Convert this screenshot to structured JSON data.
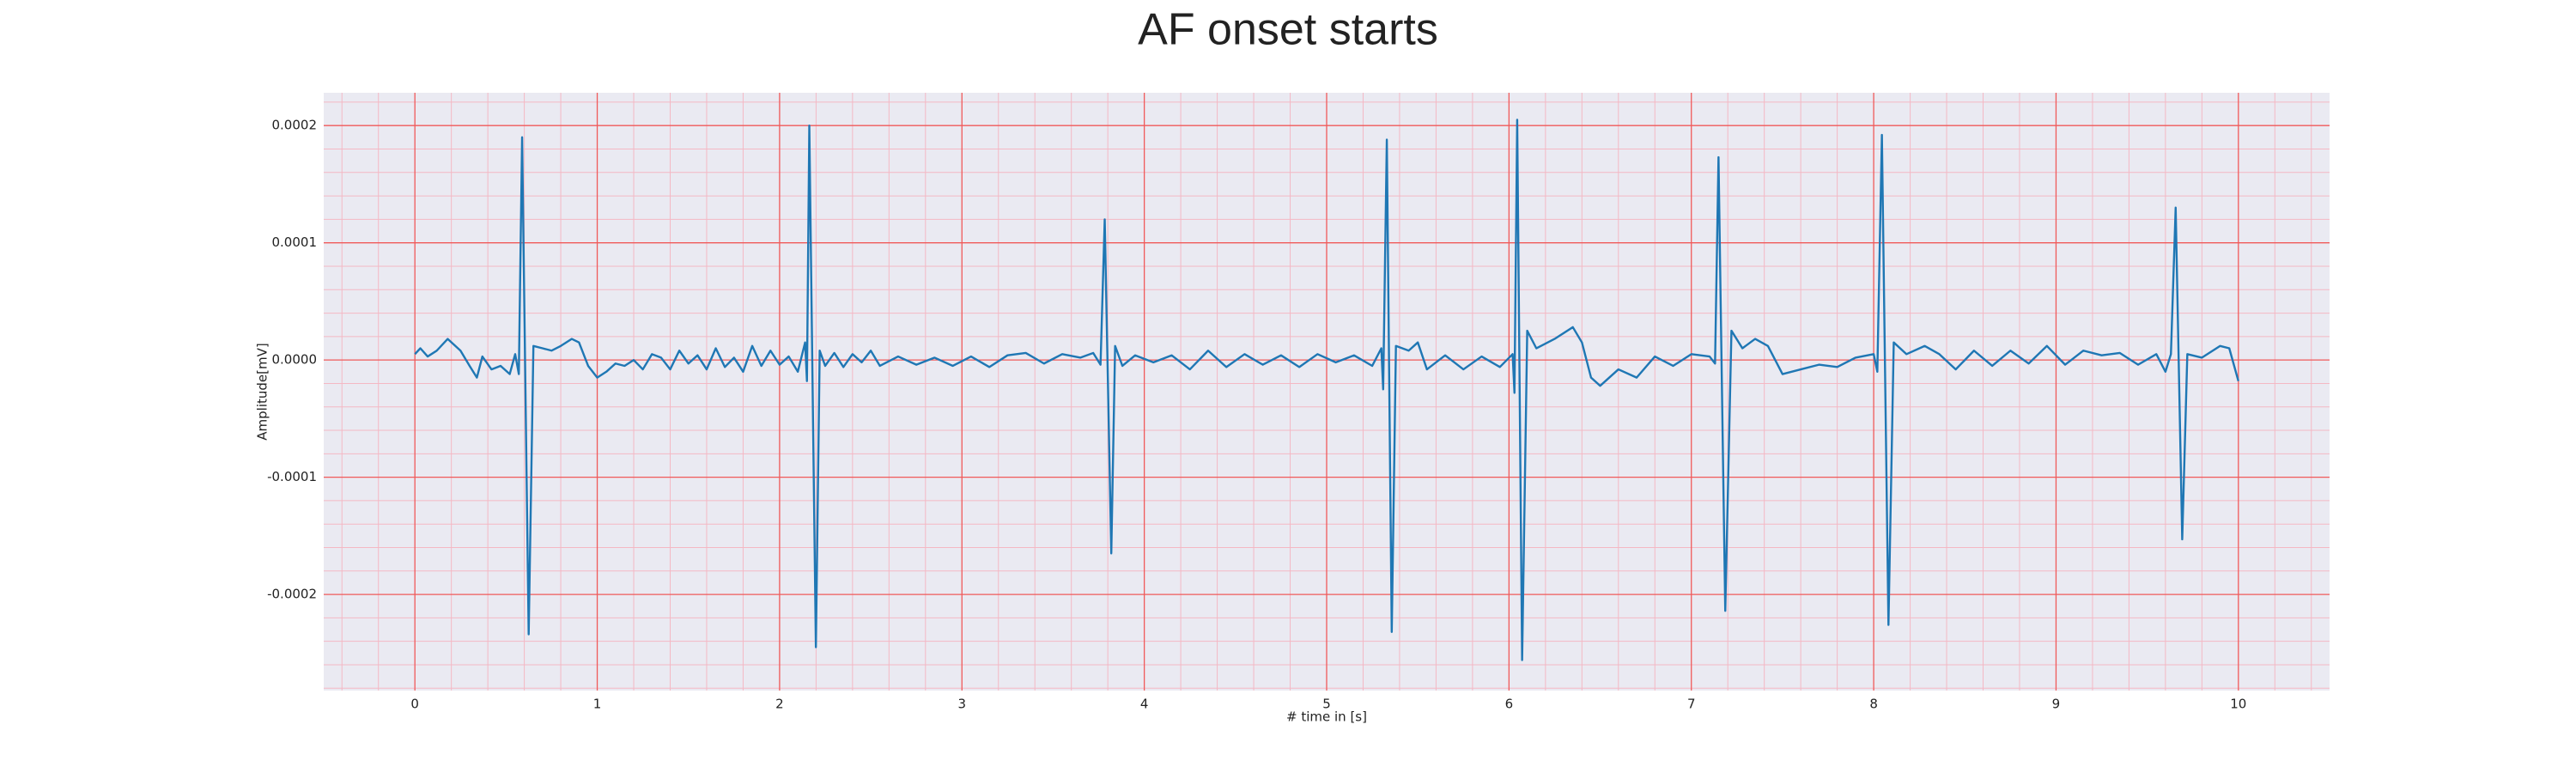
{
  "chart_data": {
    "type": "line",
    "title": "AF onset starts",
    "xlabel": "# time in [s]",
    "ylabel": "Amplitude[mV]",
    "xlim": [
      -0.5,
      10.5
    ],
    "ylim": [
      -0.000282,
      0.000228
    ],
    "xticks": [
      0,
      1,
      2,
      3,
      4,
      5,
      6,
      7,
      8,
      9,
      10
    ],
    "yticks": [
      -0.0002,
      -0.0001,
      {
        "value": 0,
        "label": "0.0000"
      },
      0.0001,
      0.0002
    ],
    "grid": true,
    "minor_grid": true,
    "minor_per_major": 5,
    "series": [
      {
        "color": "#1f77b4",
        "x": [
          0,
          0.03,
          0.07,
          0.12,
          0.18,
          0.25,
          0.3,
          0.34,
          0.37,
          0.42,
          0.47,
          0.52,
          0.55,
          0.57,
          0.588,
          0.624,
          0.65,
          0.7,
          0.75,
          0.8,
          0.86,
          0.9,
          0.95,
          1.0,
          1.05,
          1.1,
          1.15,
          1.2,
          1.25,
          1.3,
          1.35,
          1.4,
          1.45,
          1.5,
          1.55,
          1.6,
          1.65,
          1.7,
          1.75,
          1.8,
          1.85,
          1.9,
          1.95,
          2.0,
          2.05,
          2.1,
          2.14,
          2.15,
          2.163,
          2.199,
          2.22,
          2.25,
          2.3,
          2.35,
          2.4,
          2.45,
          2.5,
          2.55,
          2.65,
          2.75,
          2.85,
          2.95,
          3.05,
          3.15,
          3.25,
          3.35,
          3.45,
          3.55,
          3.65,
          3.72,
          3.76,
          3.783,
          3.819,
          3.84,
          3.88,
          3.95,
          4.05,
          4.15,
          4.25,
          4.35,
          4.45,
          4.55,
          4.65,
          4.75,
          4.85,
          4.95,
          5.05,
          5.15,
          5.25,
          5.3,
          5.31,
          5.33,
          5.357,
          5.38,
          5.45,
          5.5,
          5.55,
          5.65,
          5.75,
          5.85,
          5.95,
          6.02,
          6.03,
          6.045,
          6.072,
          6.1,
          6.15,
          6.25,
          6.35,
          6.4,
          6.45,
          6.5,
          6.6,
          6.7,
          6.8,
          6.9,
          7.0,
          7.1,
          7.13,
          7.149,
          7.186,
          7.22,
          7.28,
          7.35,
          7.42,
          7.5,
          7.6,
          7.7,
          7.8,
          7.9,
          8.0,
          8.02,
          8.045,
          8.081,
          8.11,
          8.18,
          8.28,
          8.36,
          8.45,
          8.55,
          8.65,
          8.75,
          8.85,
          8.95,
          9.05,
          9.15,
          9.25,
          9.35,
          9.45,
          9.55,
          9.6,
          9.63,
          9.656,
          9.692,
          9.72,
          9.8,
          9.9,
          9.95,
          10.0
        ],
        "values": [
          5e-06,
          1e-05,
          3e-06,
          8e-06,
          1.8e-05,
          8e-06,
          -5e-06,
          -1.5e-05,
          3e-06,
          -8e-06,
          -5e-06,
          -1.2e-05,
          5e-06,
          -1.2e-05,
          0.00019,
          -0.000234,
          1.2e-05,
          1e-05,
          8e-06,
          1.2e-05,
          1.8e-05,
          1.5e-05,
          -5e-06,
          -1.5e-05,
          -1e-05,
          -3e-06,
          -5e-06,
          0,
          -8e-06,
          5e-06,
          2e-06,
          -8e-06,
          8e-06,
          -3e-06,
          4e-06,
          -8e-06,
          1e-05,
          -6e-06,
          2e-06,
          -1e-05,
          1.2e-05,
          -5e-06,
          8e-06,
          -4e-06,
          3e-06,
          -1e-05,
          1.5e-05,
          -1.8e-05,
          0.0002,
          -0.000245,
          8e-06,
          -5e-06,
          6e-06,
          -6e-06,
          5e-06,
          -2e-06,
          8e-06,
          -5e-06,
          3e-06,
          -4e-06,
          2e-06,
          -5e-06,
          3e-06,
          -6e-06,
          4e-06,
          6e-06,
          -3e-06,
          5e-06,
          2e-06,
          6e-06,
          -4e-06,
          0.00012,
          -0.000165,
          1.2e-05,
          -5e-06,
          4e-06,
          -2e-06,
          4e-06,
          -8e-06,
          8e-06,
          -6e-06,
          5e-06,
          -4e-06,
          4e-06,
          -6e-06,
          5e-06,
          -2e-06,
          4e-06,
          -5e-06,
          1e-05,
          -2.5e-05,
          0.000188,
          -0.000232,
          1.2e-05,
          8e-06,
          1.5e-05,
          -8e-06,
          4e-06,
          -8e-06,
          3e-06,
          -6e-06,
          5e-06,
          -2.8e-05,
          0.000205,
          -0.000256,
          2.5e-05,
          1e-05,
          1.8e-05,
          2.8e-05,
          1.5e-05,
          -1.5e-05,
          -2.2e-05,
          -8e-06,
          -1.5e-05,
          3e-06,
          -5e-06,
          5e-06,
          3e-06,
          -3e-06,
          0.000173,
          -0.000214,
          2.5e-05,
          1e-05,
          1.8e-05,
          1.2e-05,
          -1.2e-05,
          -8e-06,
          -4e-06,
          -6e-06,
          2e-06,
          5e-06,
          -1e-05,
          0.000192,
          -0.000226,
          1.5e-05,
          5e-06,
          1.2e-05,
          5e-06,
          -8e-06,
          8e-06,
          -5e-06,
          8e-06,
          -3e-06,
          1.2e-05,
          -4e-06,
          8e-06,
          4e-06,
          6e-06,
          -4e-06,
          5e-06,
          -1e-05,
          5e-06,
          0.00013,
          -0.000153,
          5e-06,
          2e-06,
          1.2e-05,
          1e-05,
          -1.8e-05
        ]
      }
    ]
  }
}
